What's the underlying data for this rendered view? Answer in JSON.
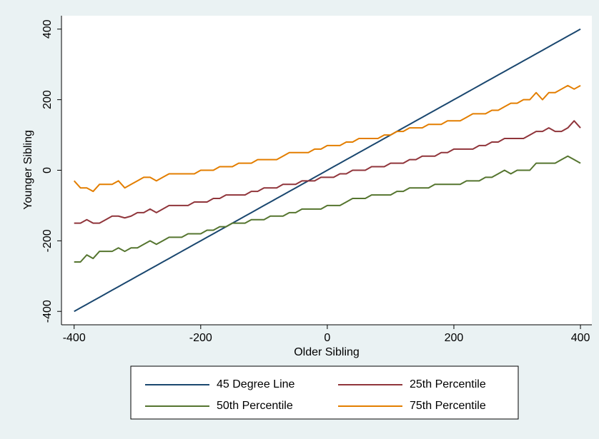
{
  "chart_data": {
    "type": "line",
    "x": [
      -400,
      -390,
      -380,
      -370,
      -360,
      -350,
      -340,
      -330,
      -320,
      -310,
      -300,
      -290,
      -280,
      -270,
      -260,
      -250,
      -240,
      -230,
      -220,
      -210,
      -200,
      -190,
      -180,
      -170,
      -160,
      -150,
      -140,
      -130,
      -120,
      -110,
      -100,
      -90,
      -80,
      -70,
      -60,
      -50,
      -40,
      -30,
      -20,
      -10,
      0,
      10,
      20,
      30,
      40,
      50,
      60,
      70,
      80,
      90,
      100,
      110,
      120,
      130,
      140,
      150,
      160,
      170,
      180,
      190,
      200,
      210,
      220,
      230,
      240,
      250,
      260,
      270,
      280,
      290,
      300,
      310,
      320,
      330,
      340,
      350,
      360,
      370,
      380,
      390,
      400
    ],
    "series": [
      {
        "name": "45 Degree Line",
        "color": "#1a476f",
        "values": [
          -400,
          -390,
          -380,
          -370,
          -360,
          -350,
          -340,
          -330,
          -320,
          -310,
          -300,
          -290,
          -280,
          -270,
          -260,
          -250,
          -240,
          -230,
          -220,
          -210,
          -200,
          -190,
          -180,
          -170,
          -160,
          -150,
          -140,
          -130,
          -120,
          -110,
          -100,
          -90,
          -80,
          -70,
          -60,
          -50,
          -40,
          -30,
          -20,
          -10,
          0,
          10,
          20,
          30,
          40,
          50,
          60,
          70,
          80,
          90,
          100,
          110,
          120,
          130,
          140,
          150,
          160,
          170,
          180,
          190,
          200,
          210,
          220,
          230,
          240,
          250,
          260,
          270,
          280,
          290,
          300,
          310,
          320,
          330,
          340,
          350,
          360,
          370,
          380,
          390,
          400
        ]
      },
      {
        "name": "25th Percentile",
        "color": "#90353b",
        "values": [
          -150,
          -150,
          -140,
          -150,
          -150,
          -140,
          -130,
          -130,
          -135,
          -130,
          -120,
          -120,
          -110,
          -120,
          -110,
          -100,
          -100,
          -100,
          -100,
          -90,
          -90,
          -90,
          -80,
          -80,
          -70,
          -70,
          -70,
          -70,
          -60,
          -60,
          -50,
          -50,
          -50,
          -40,
          -40,
          -40,
          -30,
          -30,
          -30,
          -20,
          -20,
          -20,
          -10,
          -10,
          0,
          0,
          0,
          10,
          10,
          10,
          20,
          20,
          20,
          30,
          30,
          40,
          40,
          40,
          50,
          50,
          60,
          60,
          60,
          60,
          70,
          70,
          80,
          80,
          90,
          90,
          90,
          90,
          100,
          110,
          110,
          120,
          110,
          110,
          120,
          140,
          120
        ]
      },
      {
        "name": "50th Percentile",
        "color": "#55752f",
        "values": [
          -260,
          -260,
          -240,
          -250,
          -230,
          -230,
          -230,
          -220,
          -230,
          -220,
          -220,
          -210,
          -200,
          -210,
          -200,
          -190,
          -190,
          -190,
          -180,
          -180,
          -180,
          -170,
          -170,
          -160,
          -160,
          -150,
          -150,
          -150,
          -140,
          -140,
          -140,
          -130,
          -130,
          -130,
          -120,
          -120,
          -110,
          -110,
          -110,
          -110,
          -100,
          -100,
          -100,
          -90,
          -80,
          -80,
          -80,
          -70,
          -70,
          -70,
          -70,
          -60,
          -60,
          -50,
          -50,
          -50,
          -50,
          -40,
          -40,
          -40,
          -40,
          -40,
          -30,
          -30,
          -30,
          -20,
          -20,
          -10,
          0,
          -10,
          0,
          0,
          0,
          20,
          20,
          20,
          20,
          30,
          40,
          30,
          20
        ]
      },
      {
        "name": "75th Percentile",
        "color": "#e37e00",
        "values": [
          -30,
          -50,
          -50,
          -60,
          -40,
          -40,
          -40,
          -30,
          -50,
          -40,
          -30,
          -20,
          -20,
          -30,
          -20,
          -10,
          -10,
          -10,
          -10,
          -10,
          0,
          0,
          0,
          10,
          10,
          10,
          20,
          20,
          20,
          30,
          30,
          30,
          30,
          40,
          50,
          50,
          50,
          50,
          60,
          60,
          70,
          70,
          70,
          80,
          80,
          90,
          90,
          90,
          90,
          100,
          100,
          110,
          110,
          120,
          120,
          120,
          130,
          130,
          130,
          140,
          140,
          140,
          150,
          160,
          160,
          160,
          170,
          170,
          180,
          190,
          190,
          200,
          200,
          220,
          200,
          220,
          220,
          230,
          240,
          230,
          240
        ]
      }
    ],
    "xlabel": "Older Sibling",
    "ylabel": "Younger Sibling",
    "xlim": [
      -420,
      418
    ],
    "ylim": [
      -438,
      438
    ],
    "xticks": [
      -400,
      -200,
      0,
      200,
      400
    ],
    "yticks": [
      -400,
      -200,
      0,
      200,
      400
    ],
    "grid": false
  }
}
